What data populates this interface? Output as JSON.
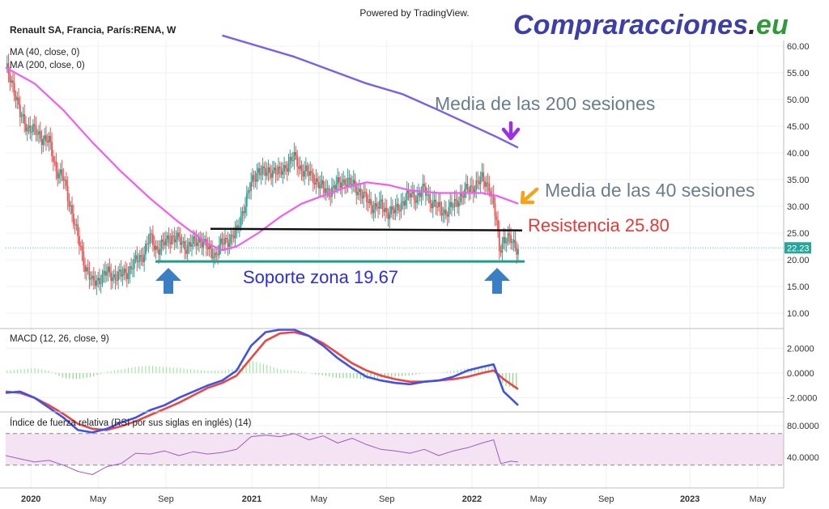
{
  "header": {
    "powered_by": "Powered by TradingView.",
    "symbol_title": "Renault SA, Francia, París:RENA, W",
    "ma40_label": "MA (40, close, 0)",
    "ma200_label": "MA (200, close, 0)"
  },
  "watermark": {
    "name": "Comprar",
    "name2": "acciones",
    "dot": ".",
    "tld": "eu"
  },
  "annotations": {
    "ma200": "Media de las 200 sesiones",
    "ma40": "Media de las 40 sesiones",
    "resistance": "Resistencia 25.80",
    "support": "Soporte zona 19.67"
  },
  "indicators": {
    "macd_label": "MACD (12, 26, close, 9)",
    "rsi_label": "Índice de fuerza relativa (RSI por sus siglas en inglés) (14)"
  },
  "colors": {
    "bull": "#26a69a",
    "bear": "#ef5350",
    "ma40": "#f25cf2",
    "ma200": "#7b5cf0",
    "resistance_line": "#111111",
    "support_line": "#1f9e8c",
    "arrow_blue": "#3a7fc4",
    "arrow_purple": "#9b30e8",
    "arrow_orange": "#f5a31a",
    "price_badge": "#26a69a",
    "macd_line": "#3f51e8",
    "signal_line": "#ef4444",
    "rsi_line": "#a05cc0",
    "rsi_band": "#f3e3f3"
  },
  "chart_data": [
    {
      "type": "candlestick",
      "title": "Renault SA, Francia, París:RENA, W",
      "y_axis": {
        "ticks": [
          "60.00",
          "55.00",
          "50.00",
          "45.00",
          "40.00",
          "35.00",
          "30.00",
          "25.00",
          "20.00",
          "15.00",
          "10.00"
        ],
        "range": [
          7.5,
          61.5
        ]
      },
      "x_axis": {
        "ticks": [
          "2020",
          "May",
          "Sep",
          "2021",
          "May",
          "Sep",
          "2022",
          "May",
          "Sep",
          "2023",
          "May"
        ]
      },
      "last_price": "22.23",
      "close_path": [
        [
          0,
          56
        ],
        [
          5,
          53
        ],
        [
          10,
          47
        ],
        [
          15,
          45
        ],
        [
          20,
          44
        ],
        [
          25,
          43
        ],
        [
          30,
          42
        ],
        [
          35,
          37
        ],
        [
          40,
          35
        ],
        [
          45,
          30
        ],
        [
          50,
          24
        ],
        [
          55,
          19
        ],
        [
          60,
          15.5
        ],
        [
          65,
          16.5
        ],
        [
          70,
          17.5
        ],
        [
          75,
          17
        ],
        [
          80,
          17
        ],
        [
          85,
          18
        ],
        [
          90,
          19.5
        ],
        [
          95,
          21
        ],
        [
          100,
          24
        ],
        [
          105,
          22
        ],
        [
          110,
          23
        ],
        [
          115,
          24.5
        ],
        [
          120,
          23.5
        ],
        [
          125,
          22.5
        ],
        [
          130,
          23
        ],
        [
          135,
          24
        ],
        [
          140,
          22
        ],
        [
          145,
          21
        ],
        [
          150,
          23
        ],
        [
          155,
          24
        ],
        [
          160,
          25
        ],
        [
          165,
          30
        ],
        [
          170,
          34
        ],
        [
          175,
          37
        ],
        [
          180,
          36
        ],
        [
          185,
          37
        ],
        [
          190,
          36
        ],
        [
          195,
          38
        ],
        [
          200,
          39
        ],
        [
          205,
          37
        ],
        [
          210,
          36
        ],
        [
          215,
          35
        ],
        [
          220,
          33
        ],
        [
          225,
          33
        ],
        [
          230,
          34
        ],
        [
          235,
          35
        ],
        [
          240,
          34
        ],
        [
          245,
          33
        ],
        [
          250,
          31
        ],
        [
          255,
          30
        ],
        [
          260,
          30
        ],
        [
          265,
          29
        ],
        [
          270,
          29
        ],
        [
          275,
          31
        ],
        [
          280,
          32
        ],
        [
          285,
          32
        ],
        [
          290,
          33
        ],
        [
          295,
          31
        ],
        [
          300,
          29.5
        ],
        [
          305,
          29
        ],
        [
          310,
          30
        ],
        [
          315,
          32
        ],
        [
          320,
          33
        ],
        [
          325,
          34
        ],
        [
          330,
          35
        ],
        [
          335,
          34
        ],
        [
          340,
          27
        ],
        [
          342,
          22
        ],
        [
          345,
          24
        ],
        [
          350,
          23.5
        ],
        [
          355,
          22.2
        ]
      ],
      "ma40": [
        [
          0,
          56
        ],
        [
          20,
          53
        ],
        [
          40,
          48
        ],
        [
          60,
          42
        ],
        [
          80,
          36.5
        ],
        [
          100,
          31.5
        ],
        [
          120,
          27
        ],
        [
          140,
          23
        ],
        [
          150,
          21.8
        ],
        [
          160,
          22.5
        ],
        [
          175,
          25
        ],
        [
          190,
          28
        ],
        [
          205,
          30.5
        ],
        [
          220,
          32
        ],
        [
          235,
          33.5
        ],
        [
          250,
          34.5
        ],
        [
          265,
          34
        ],
        [
          280,
          33
        ],
        [
          300,
          32.5
        ],
        [
          315,
          32.5
        ],
        [
          330,
          32.5
        ],
        [
          340,
          32
        ],
        [
          355,
          30.5
        ]
      ],
      "ma200": [
        [
          150,
          62
        ],
        [
          175,
          60
        ],
        [
          200,
          58
        ],
        [
          225,
          55.5
        ],
        [
          250,
          53
        ],
        [
          275,
          51
        ],
        [
          300,
          48
        ],
        [
          320,
          45.5
        ],
        [
          340,
          43
        ],
        [
          355,
          41
        ]
      ],
      "resistance": 25.8,
      "support": 19.67
    },
    {
      "type": "bar+line",
      "title": "MACD (12, 26, close, 9)",
      "y_axis": {
        "ticks": [
          "2.0000",
          "0.0000",
          "-2.0000"
        ]
      },
      "macd": [
        [
          0,
          -1.6
        ],
        [
          10,
          -1.5
        ],
        [
          20,
          -2.0
        ],
        [
          30,
          -2.8
        ],
        [
          40,
          -3.6
        ],
        [
          50,
          -4.6
        ],
        [
          60,
          -4.8
        ],
        [
          70,
          -4.5
        ],
        [
          80,
          -4.0
        ],
        [
          90,
          -3.6
        ],
        [
          100,
          -3.0
        ],
        [
          110,
          -2.6
        ],
        [
          120,
          -2.0
        ],
        [
          130,
          -1.5
        ],
        [
          140,
          -1.0
        ],
        [
          150,
          -0.6
        ],
        [
          160,
          0.2
        ],
        [
          170,
          2.2
        ],
        [
          180,
          3.3
        ],
        [
          190,
          3.5
        ],
        [
          200,
          3.5
        ],
        [
          210,
          3.0
        ],
        [
          220,
          2.2
        ],
        [
          230,
          1.2
        ],
        [
          240,
          0.4
        ],
        [
          250,
          -0.3
        ],
        [
          260,
          -0.6
        ],
        [
          270,
          -0.8
        ],
        [
          280,
          -0.9
        ],
        [
          290,
          -0.7
        ],
        [
          300,
          -0.6
        ],
        [
          310,
          -0.3
        ],
        [
          320,
          0.2
        ],
        [
          330,
          0.5
        ],
        [
          338,
          0.7
        ],
        [
          345,
          -1.5
        ],
        [
          355,
          -2.6
        ]
      ],
      "signal": [
        [
          0,
          -1.5
        ],
        [
          10,
          -1.6
        ],
        [
          20,
          -2.0
        ],
        [
          30,
          -2.6
        ],
        [
          40,
          -3.3
        ],
        [
          50,
          -4.1
        ],
        [
          60,
          -4.5
        ],
        [
          70,
          -4.6
        ],
        [
          80,
          -4.3
        ],
        [
          90,
          -3.9
        ],
        [
          100,
          -3.4
        ],
        [
          110,
          -2.9
        ],
        [
          120,
          -2.4
        ],
        [
          130,
          -1.8
        ],
        [
          140,
          -1.2
        ],
        [
          150,
          -0.8
        ],
        [
          160,
          -0.2
        ],
        [
          170,
          1.2
        ],
        [
          180,
          2.6
        ],
        [
          190,
          3.2
        ],
        [
          200,
          3.3
        ],
        [
          210,
          3.0
        ],
        [
          220,
          2.4
        ],
        [
          230,
          1.6
        ],
        [
          240,
          0.8
        ],
        [
          250,
          0.2
        ],
        [
          260,
          -0.2
        ],
        [
          270,
          -0.5
        ],
        [
          280,
          -0.7
        ],
        [
          290,
          -0.7
        ],
        [
          300,
          -0.6
        ],
        [
          310,
          -0.5
        ],
        [
          320,
          -0.3
        ],
        [
          330,
          0.0
        ],
        [
          338,
          0.2
        ],
        [
          345,
          -0.5
        ],
        [
          355,
          -1.3
        ]
      ],
      "histogram": [
        [
          0,
          0.2
        ],
        [
          20,
          0.4
        ],
        [
          30,
          0.2
        ],
        [
          40,
          -0.4
        ],
        [
          50,
          -0.5
        ],
        [
          60,
          -0.3
        ],
        [
          70,
          0.1
        ],
        [
          80,
          0.3
        ],
        [
          90,
          0.5
        ],
        [
          100,
          0.6
        ],
        [
          110,
          0.5
        ],
        [
          120,
          0.4
        ],
        [
          130,
          0.3
        ],
        [
          140,
          0.2
        ],
        [
          150,
          0.2
        ],
        [
          160,
          0.4
        ],
        [
          170,
          1.0
        ],
        [
          180,
          0.7
        ],
        [
          190,
          0.3
        ],
        [
          200,
          0.2
        ],
        [
          210,
          0.0
        ],
        [
          220,
          -0.2
        ],
        [
          230,
          -0.4
        ],
        [
          240,
          -0.4
        ],
        [
          250,
          -0.5
        ],
        [
          260,
          -0.4
        ],
        [
          270,
          -0.3
        ],
        [
          280,
          -0.2
        ],
        [
          290,
          0.0
        ],
        [
          300,
          0.0
        ],
        [
          310,
          0.2
        ],
        [
          320,
          0.4
        ],
        [
          330,
          0.5
        ],
        [
          338,
          0.5
        ],
        [
          345,
          -1.0
        ],
        [
          355,
          -1.3
        ]
      ]
    },
    {
      "type": "line",
      "title": "Índice de fuerza relativa (RSI por sus siglas en inglés) (14)",
      "y_axis": {
        "ticks": [
          "80.0000",
          "40.0000"
        ]
      },
      "band": [
        30,
        70
      ],
      "rsi": [
        [
          0,
          42
        ],
        [
          10,
          38
        ],
        [
          20,
          34
        ],
        [
          30,
          36
        ],
        [
          40,
          30
        ],
        [
          50,
          22
        ],
        [
          60,
          18
        ],
        [
          70,
          28
        ],
        [
          80,
          32
        ],
        [
          90,
          45
        ],
        [
          100,
          44
        ],
        [
          110,
          48
        ],
        [
          120,
          42
        ],
        [
          130,
          47
        ],
        [
          140,
          44
        ],
        [
          150,
          46
        ],
        [
          160,
          50
        ],
        [
          170,
          66
        ],
        [
          180,
          68
        ],
        [
          190,
          66
        ],
        [
          200,
          70
        ],
        [
          210,
          62
        ],
        [
          220,
          67
        ],
        [
          230,
          58
        ],
        [
          240,
          64
        ],
        [
          250,
          56
        ],
        [
          260,
          50
        ],
        [
          270,
          48
        ],
        [
          280,
          45
        ],
        [
          290,
          50
        ],
        [
          300,
          42
        ],
        [
          310,
          48
        ],
        [
          320,
          52
        ],
        [
          330,
          58
        ],
        [
          338,
          62
        ],
        [
          343,
          32
        ],
        [
          350,
          35
        ],
        [
          355,
          34
        ]
      ]
    }
  ]
}
